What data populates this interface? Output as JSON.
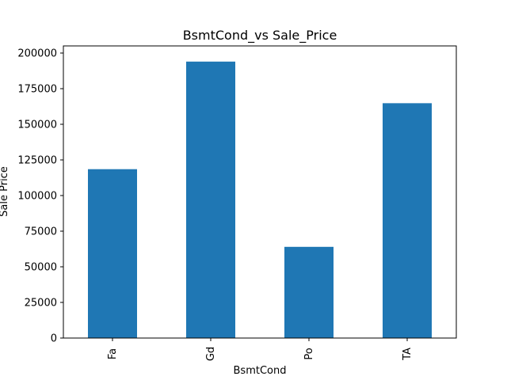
{
  "chart_data": {
    "type": "bar",
    "title": "BsmtCond_vs Sale_Price",
    "xlabel": "BsmtCond",
    "ylabel": "Sale Price",
    "categories": [
      "Fa",
      "Gd",
      "Po",
      "TA"
    ],
    "values": [
      118500,
      194000,
      64000,
      164800
    ],
    "ylim": [
      0,
      205000
    ],
    "yticks": [
      0,
      25000,
      50000,
      75000,
      100000,
      125000,
      150000,
      175000,
      200000
    ],
    "ytick_labels": [
      "0",
      "25000",
      "50000",
      "75000",
      "100000",
      "125000",
      "150000",
      "175000",
      "200000"
    ],
    "grid": false,
    "bar_color": "#1f77b4"
  }
}
